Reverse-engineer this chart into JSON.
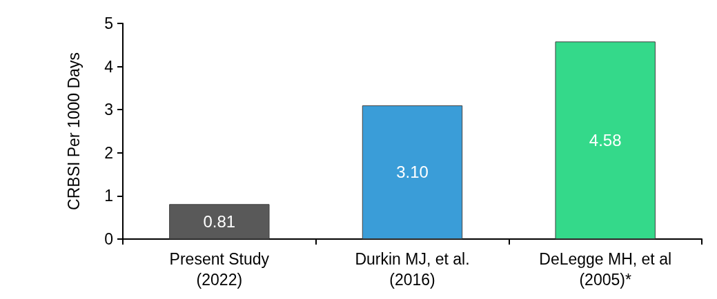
{
  "chart_data": {
    "type": "bar",
    "ylabel": "CRBSI Per 1000 Days",
    "categories": [
      "Present Study\n(2022)",
      "Durkin MJ, et al.\n(2016)",
      "DeLegge MH, et al\n(2005)*"
    ],
    "values": [
      0.81,
      3.1,
      4.58
    ],
    "colors": [
      "#595959",
      "#3a9dd8",
      "#34d98a"
    ],
    "value_labels": [
      "0.81",
      "3.10",
      "4.58"
    ],
    "ylim": [
      0,
      5
    ],
    "yticks": [
      0,
      1,
      2,
      3,
      4,
      5
    ],
    "grid": false
  }
}
